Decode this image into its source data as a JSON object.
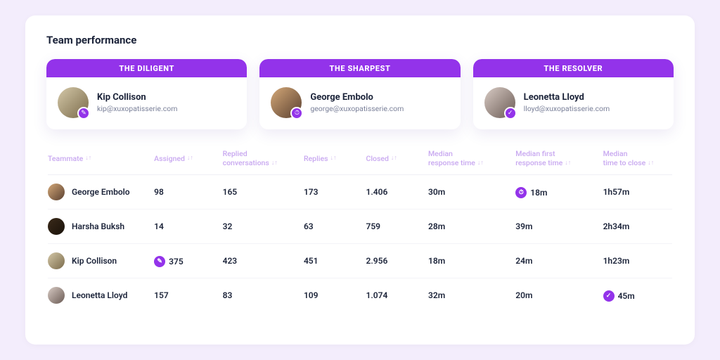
{
  "colors": {
    "page_bg": "#f3edfc",
    "card_bg": "#ffffff",
    "accent": "#9333ea",
    "header_text": "#c8a8f0",
    "text": "#1c243a",
    "muted": "#7a8099"
  },
  "title": "Team performance",
  "badges": [
    {
      "label": "THE DILIGENT",
      "name": "Kip Collison",
      "email": "kip@xuxopatisserie.com",
      "icon": "✎",
      "avatar_gradient": [
        "#d4c8a8",
        "#7a6a4a"
      ]
    },
    {
      "label": "THE SHARPEST",
      "name": "George Embolo",
      "email": "george@xuxopatisserie.com",
      "icon": "⏱",
      "avatar_gradient": [
        "#d4a878",
        "#5a4030"
      ]
    },
    {
      "label": "THE RESOLVER",
      "name": "Leonetta Lloyd",
      "email": "lloyd@xuxopatisserie.com",
      "icon": "✓",
      "avatar_gradient": [
        "#d8cbc4",
        "#6a5a54"
      ]
    }
  ],
  "table": {
    "columns": [
      "Teammate",
      "Assigned",
      "Replied\nconversations",
      "Replies",
      "Closed",
      "Median\nresponse time",
      "Median first\nresponse time",
      "Median\ntime to close"
    ],
    "sort_glyph": "↓↑",
    "rows": [
      {
        "name": "George Embolo",
        "avatar_gradient": [
          "#d4a878",
          "#5a4030"
        ],
        "cells": [
          "98",
          "165",
          "173",
          "1.406",
          "30m",
          "18m",
          "1h57m"
        ],
        "highlights": {
          "5": "⏱"
        }
      },
      {
        "name": "Harsha Buksh",
        "avatar_gradient": [
          "#3a2a1a",
          "#1a120a"
        ],
        "cells": [
          "14",
          "32",
          "63",
          "759",
          "28m",
          "39m",
          "2h34m"
        ],
        "highlights": {}
      },
      {
        "name": "Kip Collison",
        "avatar_gradient": [
          "#d4c8a8",
          "#7a6a4a"
        ],
        "cells": [
          "375",
          "423",
          "451",
          "2.956",
          "18m",
          "24m",
          "1h23m"
        ],
        "highlights": {
          "0": "✎"
        }
      },
      {
        "name": "Leonetta Lloyd",
        "avatar_gradient": [
          "#d8cbc4",
          "#6a5a54"
        ],
        "cells": [
          "157",
          "83",
          "109",
          "1.074",
          "32m",
          "20m",
          "45m"
        ],
        "highlights": {
          "6": "✓"
        }
      }
    ]
  }
}
